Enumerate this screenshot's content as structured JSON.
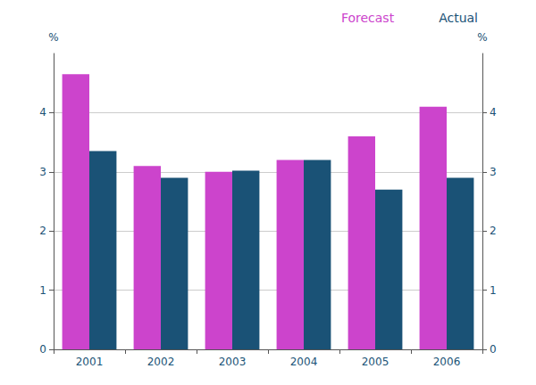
{
  "chart_data": {
    "type": "bar",
    "categories": [
      2001,
      2002,
      2003,
      2004,
      2005,
      2006
    ],
    "series": [
      {
        "name": "Forecast",
        "color": "#cc44cc",
        "values": [
          4.65,
          3.1,
          3.0,
          3.2,
          3.6,
          4.1
        ]
      },
      {
        "name": "Actual",
        "color": "#1a5276",
        "values": [
          3.35,
          2.9,
          3.02,
          3.2,
          2.7,
          2.9
        ]
      }
    ],
    "ylabel": "%",
    "ylim": [
      0,
      5.0
    ],
    "yticks": [
      0,
      1,
      2,
      3,
      4
    ],
    "y2label": "%",
    "y2lim": [
      0,
      5.0
    ],
    "y2ticks": [
      0,
      1,
      2,
      3,
      4
    ],
    "grid": true,
    "legend": "upper right"
  }
}
